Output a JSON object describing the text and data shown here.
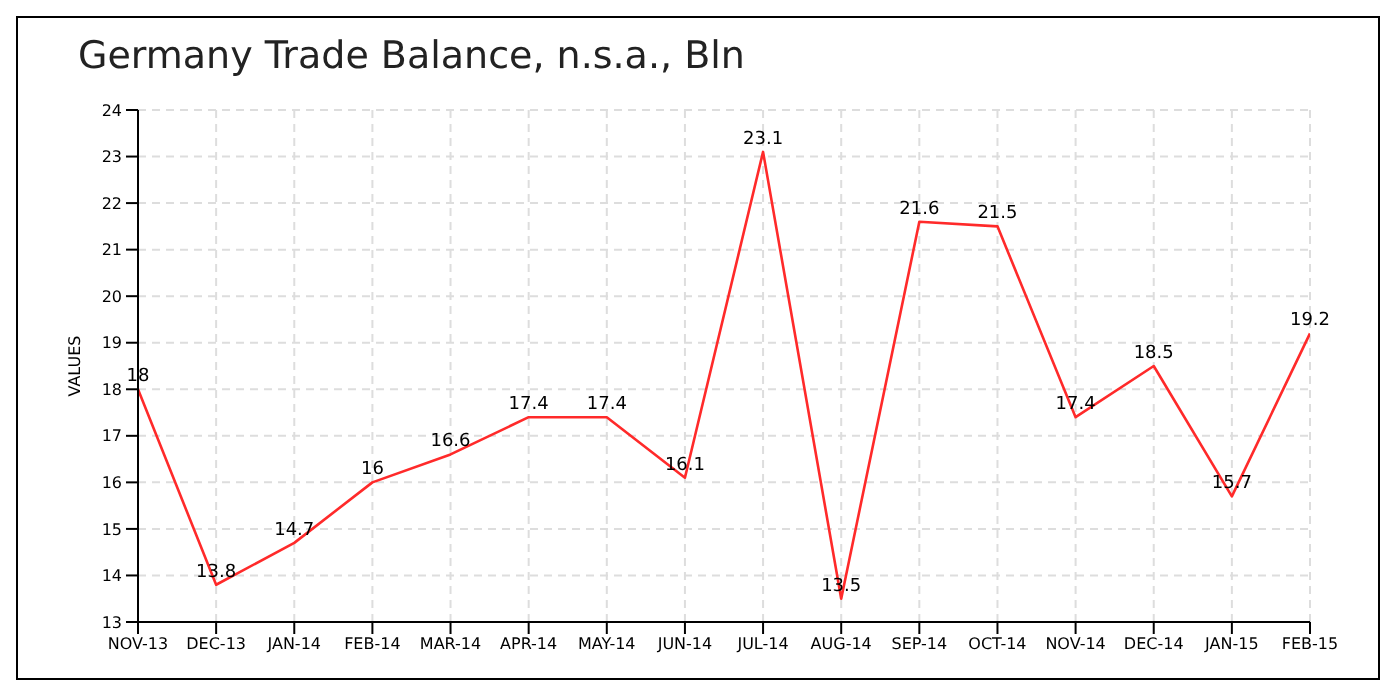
{
  "chart_data": {
    "type": "line",
    "title": "Germany Trade Balance, n.s.a., Bln",
    "ylabel": "VALUES",
    "categories": [
      "NOV-13",
      "DEC-13",
      "JAN-14",
      "FEB-14",
      "MAR-14",
      "APR-14",
      "MAY-14",
      "JUN-14",
      "JUL-14",
      "AUG-14",
      "SEP-14",
      "OCT-14",
      "NOV-14",
      "DEC-14",
      "JAN-15",
      "FEB-15"
    ],
    "series": [
      {
        "color": "#ff2a2a",
        "values": [
          18,
          13.8,
          14.7,
          16,
          16.6,
          17.4,
          17.4,
          16.1,
          23.1,
          13.5,
          21.6,
          21.5,
          17.4,
          18.5,
          15.7,
          19.2
        ]
      }
    ],
    "ylim": [
      13,
      24
    ],
    "yticks": [
      13,
      14,
      15,
      16,
      17,
      18,
      19,
      20,
      21,
      22,
      23,
      24
    ],
    "grid": true,
    "data_labels": true,
    "marker": "none",
    "line_style": "solid",
    "legend": false
  }
}
